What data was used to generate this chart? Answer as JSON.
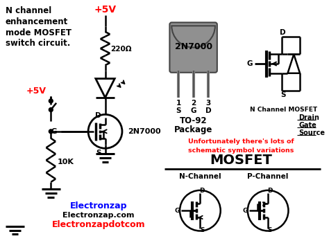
{
  "bg_color": "#ffffff",
  "title_lines": [
    "N channel",
    "enhancement",
    "mode MOSFET",
    "switch circuit."
  ],
  "red_color": "#ff0000",
  "blue_color": "#0000ff",
  "black_color": "#000000",
  "gray_color": "#888888",
  "brand1": "Electronzap",
  "brand2": "Electronzap.com",
  "brand3": "Electronzapdotcom",
  "mosfet_label": "2N7000",
  "resistor_label": "220Ω",
  "pulldown_label": "10K",
  "voltage1": "+5V",
  "voltage2": "+5V",
  "package_label": "2N7000",
  "package_type": "TO-92",
  "package_sub": "Package",
  "pin1_num": "1",
  "pin2_num": "2",
  "pin3_num": "3",
  "pin1_name": "S",
  "pin2_name": "G",
  "pin3_name": "D",
  "nchannel_label": "N Channel MOSFET",
  "drain_label": "Drain",
  "gate_label": "Gate",
  "source_label": "Source",
  "warning_line1": "Unfortunately there's lots of",
  "warning_line2": "schematic symbol variations",
  "mosfet_big": "MOSFET",
  "nchan": "N-Channel",
  "pchan": "P-Channel"
}
